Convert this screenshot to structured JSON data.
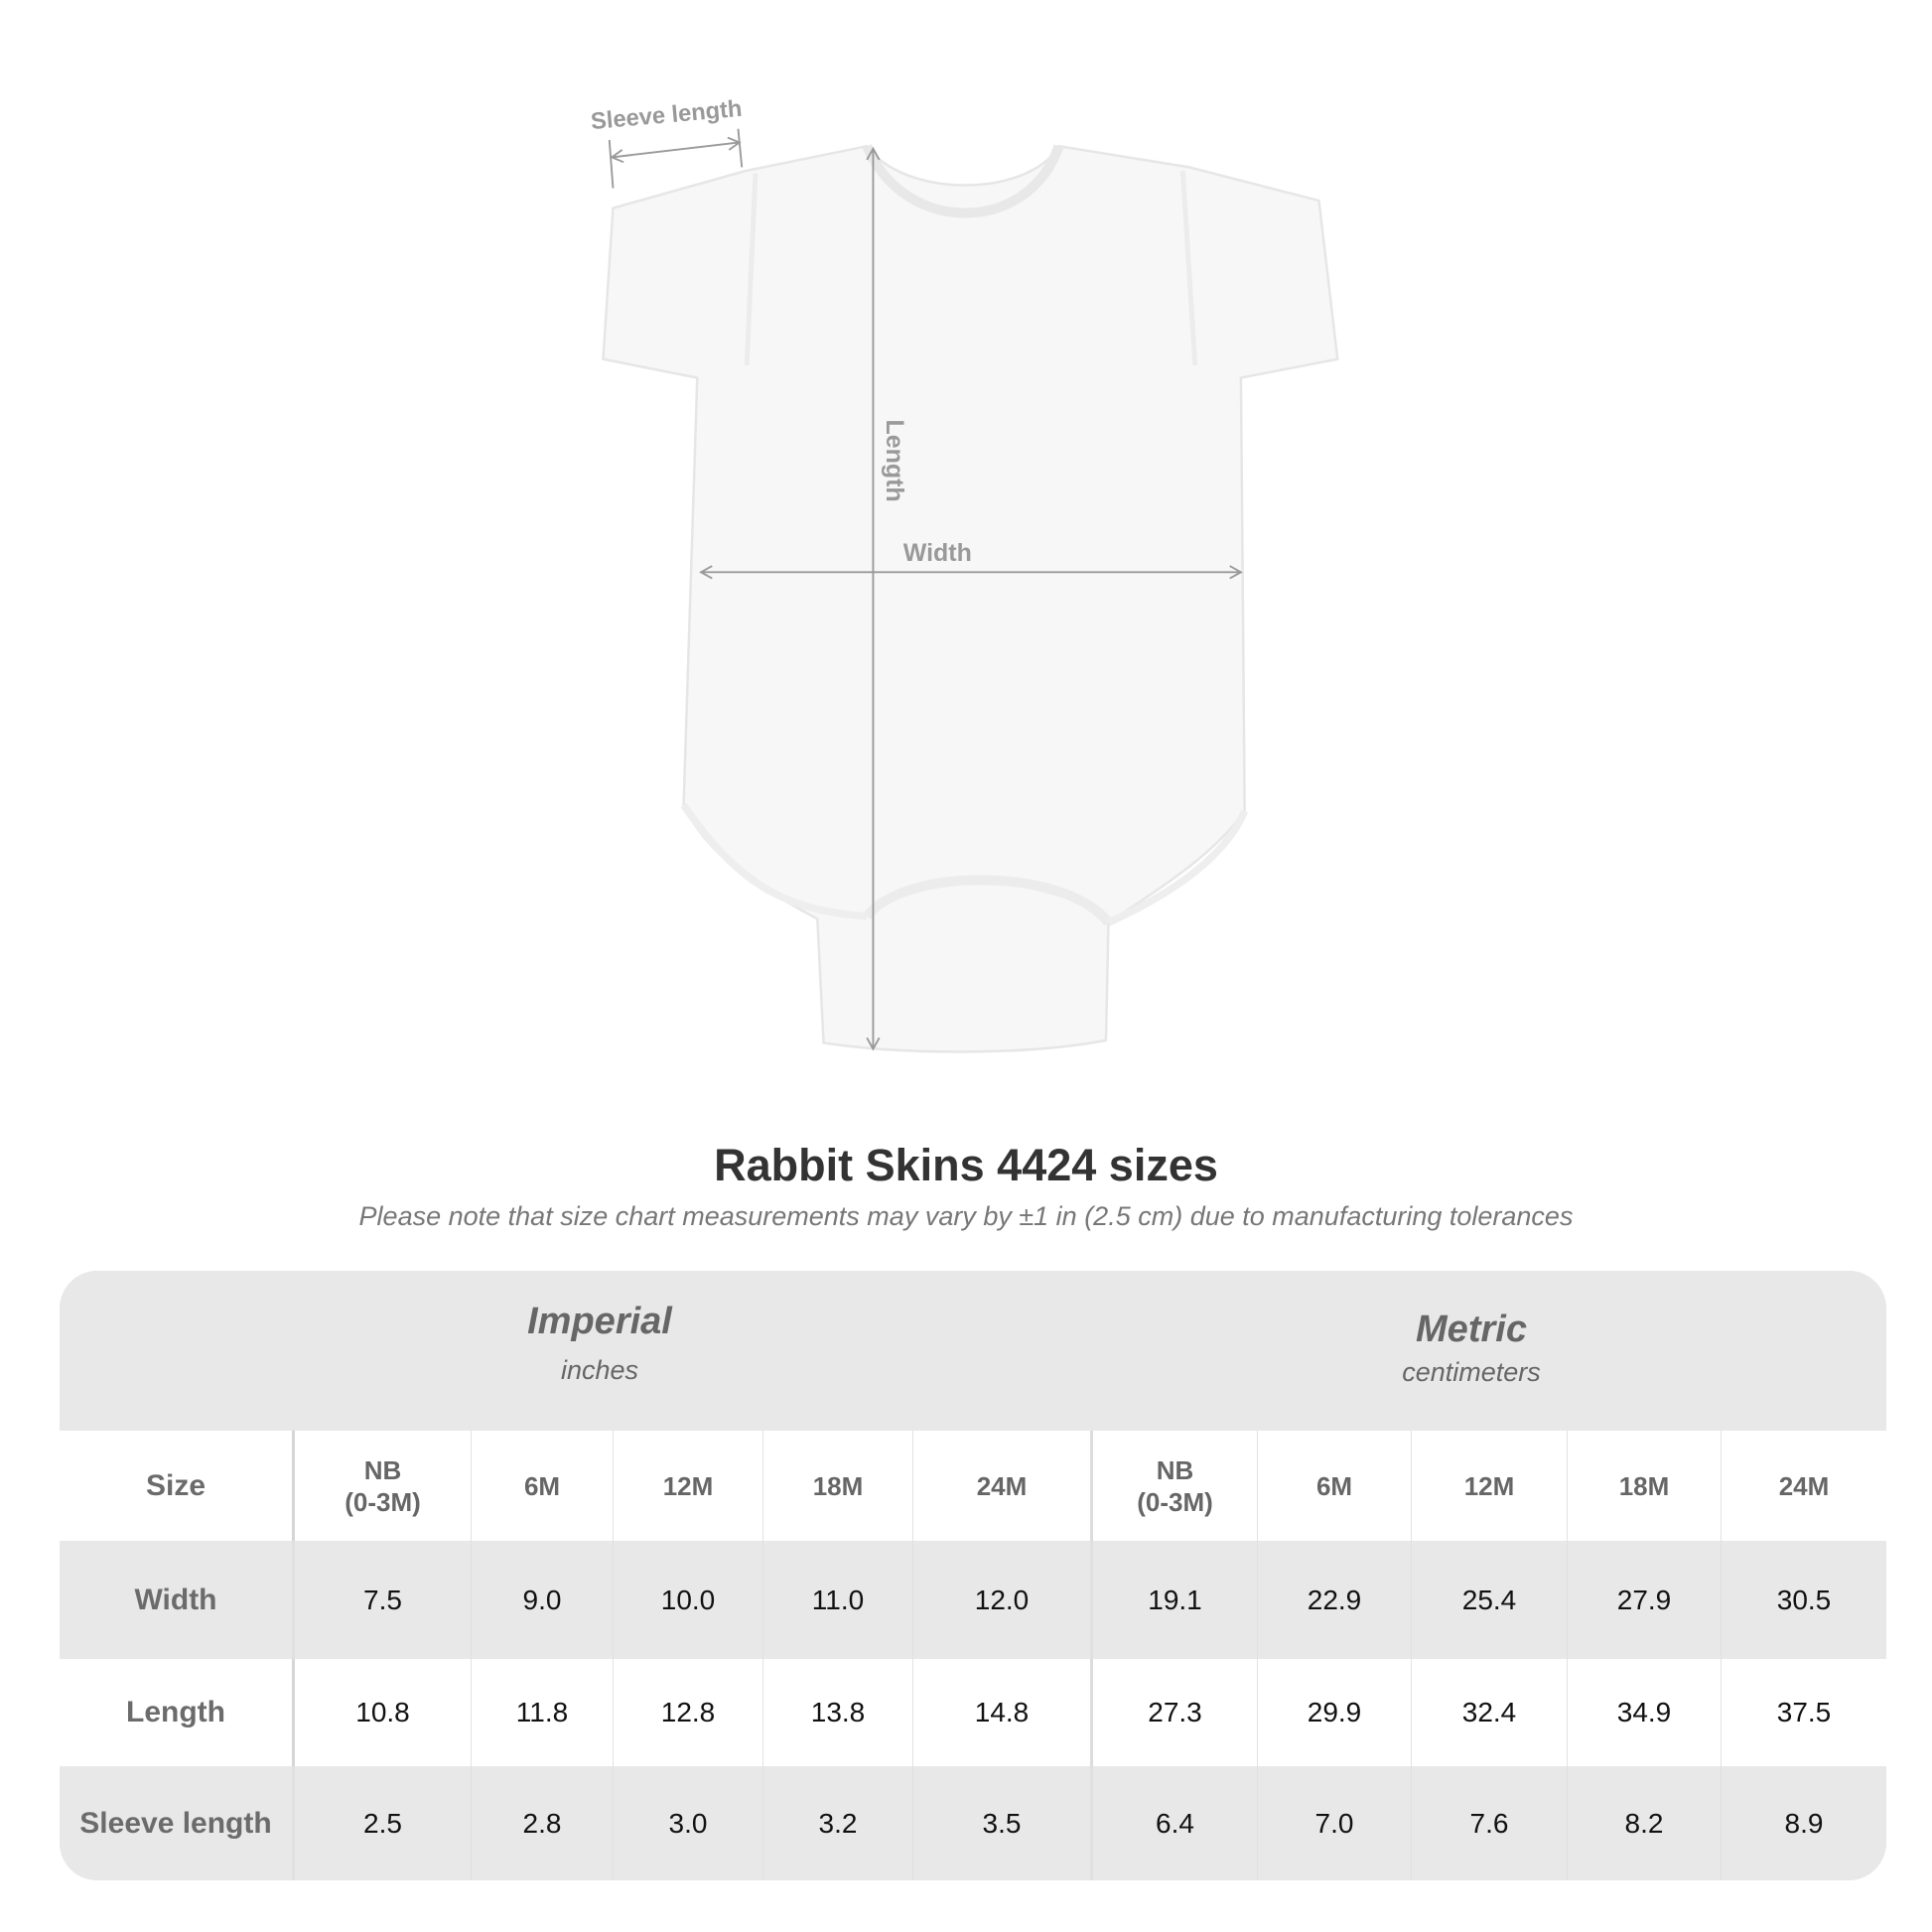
{
  "diagram": {
    "labels": {
      "sleeve_length": "Sleeve length",
      "length": "Length",
      "width": "Width"
    }
  },
  "header": {
    "title": "Rabbit Skins 4424 sizes",
    "subtitle": "Please note that size chart measurements may vary by ±1 in (2.5 cm) due to manufacturing tolerances"
  },
  "table": {
    "imperial": {
      "name": "Imperial",
      "unit": "inches"
    },
    "metric": {
      "name": "Metric",
      "unit": "centimeters"
    },
    "size_label": "Size",
    "sizes": [
      "NB\n(0-3M)",
      "6M",
      "12M",
      "18M",
      "24M"
    ],
    "rows": [
      {
        "label": "Width",
        "imperial": [
          "7.5",
          "9.0",
          "10.0",
          "11.0",
          "12.0"
        ],
        "metric": [
          "19.1",
          "22.9",
          "25.4",
          "27.9",
          "30.5"
        ]
      },
      {
        "label": "Length",
        "imperial": [
          "10.8",
          "11.8",
          "12.8",
          "13.8",
          "14.8"
        ],
        "metric": [
          "27.3",
          "29.9",
          "32.4",
          "34.9",
          "37.5"
        ]
      },
      {
        "label": "Sleeve length",
        "imperial": [
          "2.5",
          "2.8",
          "3.0",
          "3.2",
          "3.5"
        ],
        "metric": [
          "6.4",
          "7.0",
          "7.6",
          "8.2",
          "8.9"
        ]
      }
    ]
  },
  "colors": {
    "band": "#e8e8e8",
    "label_grey": "#999999",
    "title": "#333333"
  }
}
